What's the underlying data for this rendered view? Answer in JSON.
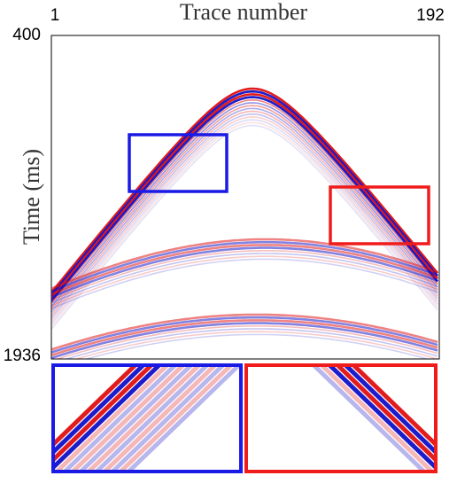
{
  "chart_data": {
    "type": "image",
    "title": "Trace number",
    "ylabel": "Time (ms)",
    "xlim": [
      1,
      192
    ],
    "xticks": [
      1,
      192
    ],
    "ylim": [
      400,
      1936
    ],
    "yticks": [
      400,
      1936
    ]
  }
}
